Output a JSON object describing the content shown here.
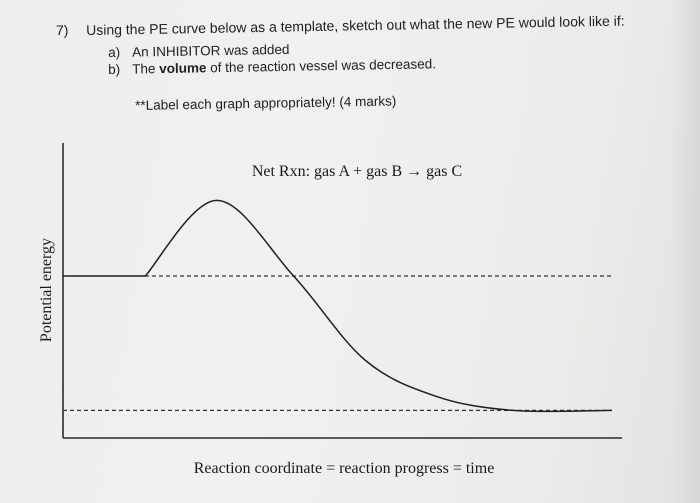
{
  "question": {
    "number": "7)",
    "text": "Using the PE curve below as a template, sketch out what the new PE would look like if:",
    "items": [
      {
        "letter": "a)",
        "text_before": "An INHIBITOR was added",
        "bold": "",
        "text_after": ""
      },
      {
        "letter": "b)",
        "text_before": "The ",
        "bold": "volume",
        "text_after": " of the reaction vessel was decreased."
      }
    ],
    "note": "**Label each graph appropriately! (4 marks)"
  },
  "graph": {
    "title": "Net Rxn: gas A + gas B → gas C",
    "y_axis_label": "Potential energy",
    "x_axis_label": "Reaction coordinate = reaction progress = time"
  },
  "chart_data": {
    "type": "line",
    "title": "Net Rxn: gas A + gas B → gas C",
    "xlabel": "Reaction coordinate = reaction progress = time",
    "ylabel": "Potential energy",
    "series": [
      {
        "name": "",
        "x": [
          0,
          15,
          28,
          42,
          55,
          68,
          82,
          100
        ],
        "y": [
          0.55,
          0.55,
          0.82,
          0.55,
          0.25,
          0.12,
          0.07,
          0.07
        ]
      }
    ],
    "reference_lines": [
      {
        "style": "dashed",
        "y": 0.55
      },
      {
        "style": "dashed",
        "y": 0.07
      }
    ],
    "xlim": [
      0,
      100
    ],
    "ylim": [
      0,
      1
    ],
    "grid": false
  }
}
